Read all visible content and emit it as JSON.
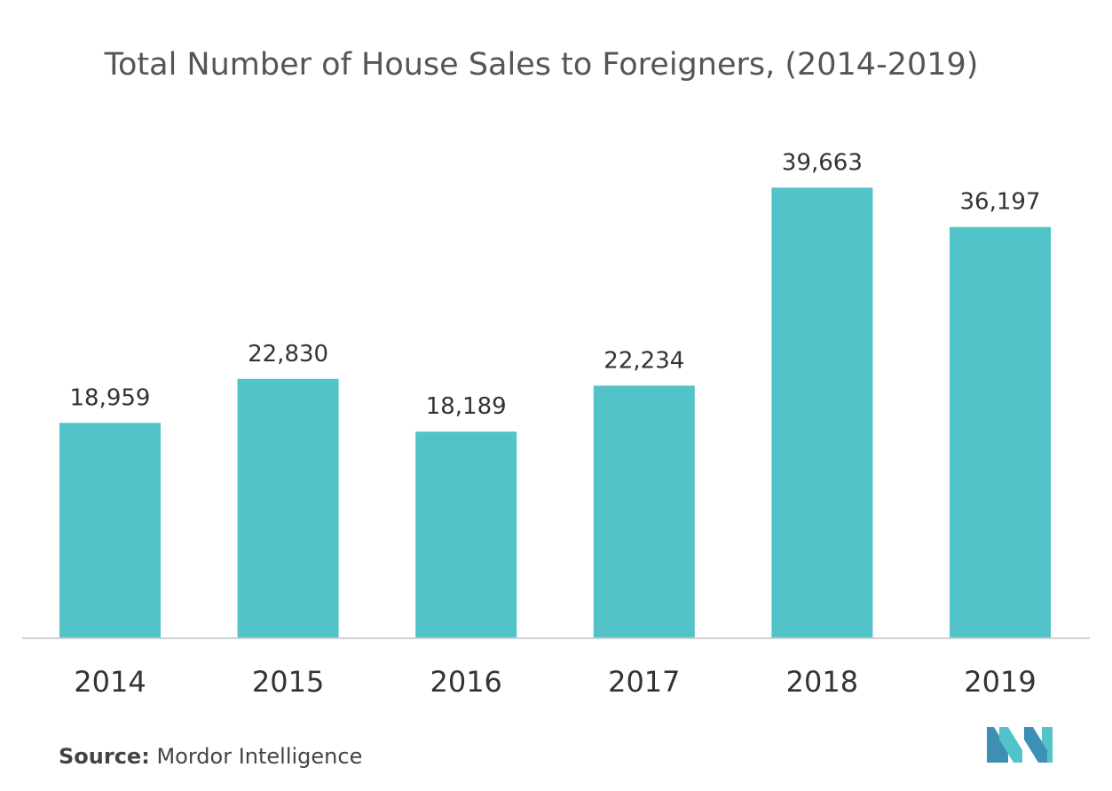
{
  "chart_data": {
    "type": "bar",
    "title": "Total Number of House Sales to Foreigners, (2014-2019)",
    "categories": [
      "2014",
      "2015",
      "2016",
      "2017",
      "2018",
      "2019"
    ],
    "values": [
      18959,
      22830,
      18189,
      22234,
      39663,
      36197
    ],
    "value_labels": [
      "18,959",
      "22,830",
      "18,189",
      "22,234",
      "39,663",
      "36,197"
    ],
    "ylim": [
      0,
      40000
    ],
    "grid": false,
    "legend": "none",
    "bar_color": "#52c3c9"
  },
  "source": {
    "label": "Source:",
    "text": "Mordor Intelligence"
  },
  "logo": {
    "icon": "mordor-intelligence-logo",
    "colors": [
      "#3d8fb3",
      "#52c3c9"
    ]
  }
}
